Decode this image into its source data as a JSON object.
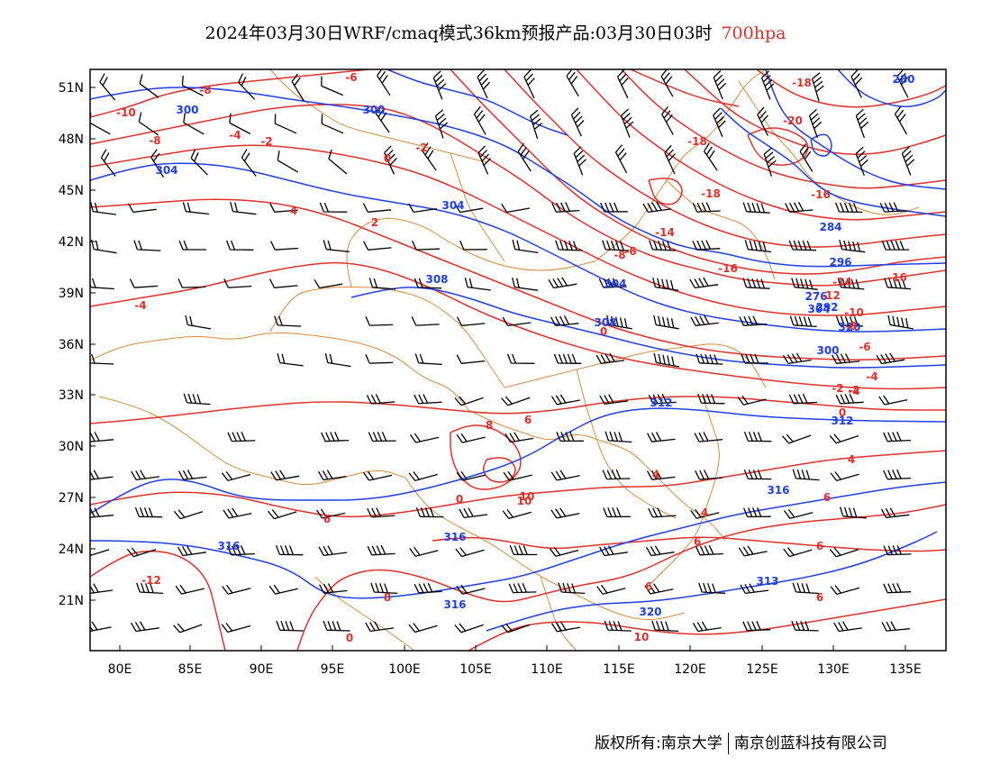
{
  "title": {
    "main": "2024年03月30日WRF/cmaq模式36km预报产品:03月30日03时",
    "level": "700hpa"
  },
  "colors": {
    "height_contour": "#1f3fe6",
    "temperature_contour": "#e0302a",
    "boundary": "#d98a3a",
    "wind_barb": "#000000",
    "frame": "#000000"
  },
  "map": {
    "lon_labels": [
      "80E",
      "85E",
      "90E",
      "95E",
      "100E",
      "105E",
      "110E",
      "115E",
      "120E",
      "125E",
      "130E",
      "135E"
    ],
    "lat_labels": [
      "51N",
      "48N",
      "45N",
      "42N",
      "39N",
      "36N",
      "33N",
      "30N",
      "27N",
      "24N",
      "21N"
    ],
    "height_contour_labels": [
      "300",
      "300",
      "304",
      "304",
      "308",
      "304",
      "308",
      "312",
      "312",
      "316",
      "316",
      "316",
      "316",
      "313",
      "320",
      "320",
      "300",
      "304",
      "296",
      "284",
      "280",
      "276",
      "292"
    ],
    "temperature_contour_labels": [
      "-8",
      "-10",
      "-8",
      "-6",
      "-4",
      "-2",
      "0",
      "-2",
      "4",
      "2",
      "-4",
      "-8",
      "-18",
      "-20",
      "-18",
      "-18",
      "-16",
      "-14",
      "-6",
      "-16",
      "-16",
      "-14",
      "-12",
      "-10",
      "-8",
      "-6",
      "-4",
      "-2",
      "0",
      "8",
      "6",
      "6",
      "10",
      "4",
      "4",
      "6",
      "6",
      "6",
      "8",
      "6",
      "6",
      "0",
      "4",
      "10",
      "-12",
      "0",
      "10",
      "-2",
      "-4",
      "0"
    ]
  },
  "footer": {
    "left": "版权所有:南京大学",
    "right": "南京创蓝科技有限公司"
  }
}
